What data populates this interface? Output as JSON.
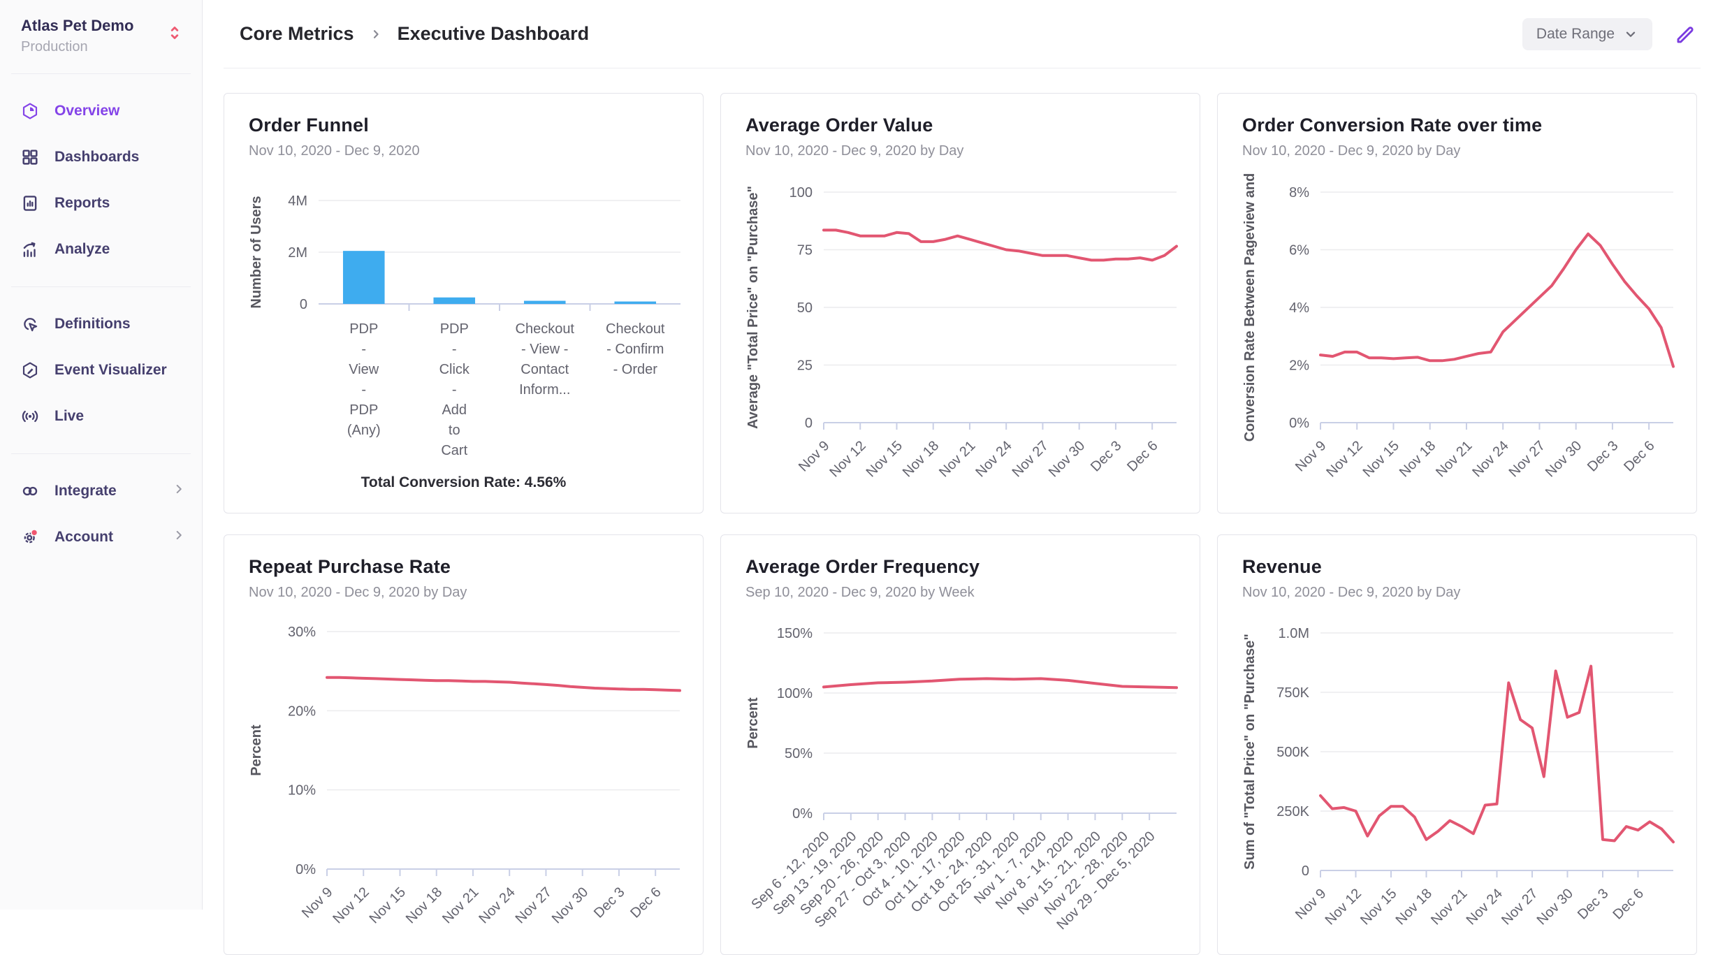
{
  "colors": {
    "accent_purple": "#8444E8",
    "sidebar_text": "#453F6E",
    "line_red": "#E25671",
    "bar_blue": "#3EACEF",
    "badge_red": "#F0566F",
    "axis_line": "#C9CFE6",
    "grid_line": "#EBEBEE"
  },
  "sidebar": {
    "org_name": "Atlas Pet Demo",
    "environment": "Production",
    "groups": [
      {
        "items": [
          {
            "label": "Overview",
            "icon": "overview-icon",
            "active": true
          },
          {
            "label": "Dashboards",
            "icon": "dashboards-icon"
          },
          {
            "label": "Reports",
            "icon": "reports-icon"
          },
          {
            "label": "Analyze",
            "icon": "analyze-icon"
          }
        ]
      },
      {
        "items": [
          {
            "label": "Definitions",
            "icon": "definitions-icon"
          },
          {
            "label": "Event Visualizer",
            "icon": "event-visualizer-icon"
          },
          {
            "label": "Live",
            "icon": "live-icon"
          }
        ]
      },
      {
        "items": [
          {
            "label": "Integrate",
            "icon": "integrate-icon",
            "chevron": true
          },
          {
            "label": "Account",
            "icon": "account-icon",
            "chevron": true,
            "badge": true
          }
        ]
      }
    ]
  },
  "header": {
    "breadcrumb": [
      "Core Metrics",
      "Executive Dashboard"
    ],
    "date_range_label": "Date Range"
  },
  "cards": [
    {
      "title": "Order Funnel",
      "subtitle": "Nov 10, 2020 - Dec 9, 2020",
      "note": "Total Conversion Rate: 4.56%",
      "chart_data": {
        "type": "bar",
        "ylabel": "Number of Users",
        "ylim": [
          0,
          4000000
        ],
        "yticks": [
          {
            "v": 0,
            "label": "0"
          },
          {
            "v": 2000000,
            "label": "2M"
          },
          {
            "v": 4000000,
            "label": "4M"
          }
        ],
        "categories": [
          "PDP - View - PDP (Any)",
          "PDP - Click - Add to Cart",
          "Checkout - View - Contact Inform...",
          "Checkout - Confirm - Order"
        ],
        "category_lines": [
          [
            "PDP",
            "-",
            "View",
            "-",
            "PDP",
            "(Any)"
          ],
          [
            "PDP",
            "-",
            "Click",
            "-",
            "Add",
            "to",
            "Cart"
          ],
          [
            "Checkout",
            "- View -",
            "Contact",
            "Inform..."
          ],
          [
            "Checkout",
            "- Confirm",
            "- Order"
          ]
        ],
        "values": [
          2050000,
          250000,
          120000,
          93000
        ]
      }
    },
    {
      "title": "Average Order Value",
      "subtitle": "Nov 10, 2020 - Dec 9, 2020 by Day",
      "chart_data": {
        "type": "line",
        "ylabel": "Average \"Total Price\" on \"Purchase\"",
        "ylim": [
          0,
          100
        ],
        "yticks": [
          {
            "v": 0,
            "label": "0"
          },
          {
            "v": 25,
            "label": "25"
          },
          {
            "v": 50,
            "label": "50"
          },
          {
            "v": 75,
            "label": "75"
          },
          {
            "v": 100,
            "label": "100"
          }
        ],
        "xticks": [
          "Nov 9",
          "Nov 12",
          "Nov 15",
          "Nov 18",
          "Nov 21",
          "Nov 24",
          "Nov 27",
          "Nov 30",
          "Dec 3",
          "Dec 6"
        ],
        "xtick_step": 3,
        "values": [
          83.5,
          83.5,
          82.5,
          81,
          81,
          81,
          82.5,
          82,
          78.5,
          78.5,
          79.5,
          81,
          79.5,
          78,
          76.5,
          75,
          74.5,
          73.5,
          72.5,
          72.5,
          72.5,
          71.5,
          70.5,
          70.5,
          71,
          71,
          71.5,
          70.5,
          72.5,
          76.5
        ]
      }
    },
    {
      "title": "Order Conversion Rate over time",
      "subtitle": "Nov 10, 2020 - Dec 9, 2020 by Day",
      "chart_data": {
        "type": "line",
        "ylabel": "Conversion Rate Between Pageview and",
        "ylim": [
          0,
          8
        ],
        "yticks": [
          {
            "v": 0,
            "label": "0%"
          },
          {
            "v": 2,
            "label": "2%"
          },
          {
            "v": 4,
            "label": "4%"
          },
          {
            "v": 6,
            "label": "6%"
          },
          {
            "v": 8,
            "label": "8%"
          }
        ],
        "xticks": [
          "Nov 9",
          "Nov 12",
          "Nov 15",
          "Nov 18",
          "Nov 21",
          "Nov 24",
          "Nov 27",
          "Nov 30",
          "Dec 3",
          "Dec 6"
        ],
        "xtick_step": 3,
        "values": [
          2.35,
          2.3,
          2.45,
          2.45,
          2.25,
          2.25,
          2.22,
          2.25,
          2.27,
          2.15,
          2.15,
          2.2,
          2.3,
          2.4,
          2.45,
          3.15,
          3.55,
          3.95,
          4.35,
          4.75,
          5.35,
          6.0,
          6.55,
          6.15,
          5.5,
          4.9,
          4.4,
          3.95,
          3.3,
          1.95
        ]
      }
    },
    {
      "title": "Repeat Purchase Rate",
      "subtitle": "Nov 10, 2020 - Dec 9, 2020 by Day",
      "chart_data": {
        "type": "line",
        "ylabel": "Percent",
        "ylim": [
          0,
          30
        ],
        "yticks": [
          {
            "v": 0,
            "label": "0%"
          },
          {
            "v": 10,
            "label": "10%"
          },
          {
            "v": 20,
            "label": "20%"
          },
          {
            "v": 30,
            "label": "30%"
          }
        ],
        "xticks": [
          "Nov 9",
          "Nov 12",
          "Nov 15",
          "Nov 18",
          "Nov 21",
          "Nov 24",
          "Nov 27",
          "Nov 30",
          "Dec 3",
          "Dec 6"
        ],
        "xtick_step": 3,
        "values": [
          24.2,
          24.2,
          24.15,
          24.1,
          24.05,
          24.0,
          23.95,
          23.9,
          23.85,
          23.8,
          23.8,
          23.75,
          23.7,
          23.7,
          23.65,
          23.6,
          23.5,
          23.4,
          23.3,
          23.2,
          23.05,
          22.95,
          22.85,
          22.8,
          22.75,
          22.7,
          22.7,
          22.65,
          22.6,
          22.55
        ]
      }
    },
    {
      "title": "Average Order Frequency",
      "subtitle": "Sep 10, 2020 - Dec 9, 2020 by Week",
      "chart_data": {
        "type": "line",
        "ylabel": "Percent",
        "ylim": [
          0,
          150
        ],
        "yticks": [
          {
            "v": 0,
            "label": "0%"
          },
          {
            "v": 50,
            "label": "50%"
          },
          {
            "v": 100,
            "label": "100%"
          },
          {
            "v": 150,
            "label": "150%"
          }
        ],
        "xticks": [
          "Sep 6 - 12, 2020",
          "Sep 13 - 19, 2020",
          "Sep 20 - 26, 2020",
          "Sep 27 - Oct 3, 2020",
          "Oct 4 - 10, 2020",
          "Oct 11 - 17, 2020",
          "Oct 18 - 24, 2020",
          "Oct 25 - 31, 2020",
          "Nov 1 - 7, 2020",
          "Nov 8 - 14, 2020",
          "Nov 15 - 21, 2020",
          "Nov 22 - 28, 2020",
          "Nov 29 - Dec 5, 2020"
        ],
        "xtick_step": 1,
        "values": [
          105,
          107,
          108.5,
          109,
          110,
          111.5,
          112,
          111.5,
          112,
          110.5,
          108,
          105.5,
          105,
          104.5
        ]
      }
    },
    {
      "title": "Revenue",
      "subtitle": "Nov 10, 2020 - Dec 9, 2020 by Day",
      "chart_data": {
        "type": "line",
        "ylabel": "Sum of \"Total Price\" on \"Purchase\"",
        "ylim": [
          0,
          1000000
        ],
        "yticks": [
          {
            "v": 0,
            "label": "0"
          },
          {
            "v": 250000,
            "label": "250K"
          },
          {
            "v": 500000,
            "label": "500K"
          },
          {
            "v": 750000,
            "label": "750K"
          },
          {
            "v": 1000000,
            "label": "1.0M"
          }
        ],
        "xticks": [
          "Nov 9",
          "Nov 12",
          "Nov 15",
          "Nov 18",
          "Nov 21",
          "Nov 24",
          "Nov 27",
          "Nov 30",
          "Dec 3",
          "Dec 6"
        ],
        "xtick_step": 3,
        "values": [
          315000,
          260000,
          265000,
          250000,
          145000,
          230000,
          270000,
          270000,
          225000,
          130000,
          165000,
          210000,
          185000,
          155000,
          275000,
          280000,
          790000,
          635000,
          600000,
          395000,
          840000,
          645000,
          665000,
          860000,
          130000,
          125000,
          185000,
          170000,
          205000,
          175000,
          120000
        ]
      }
    }
  ]
}
